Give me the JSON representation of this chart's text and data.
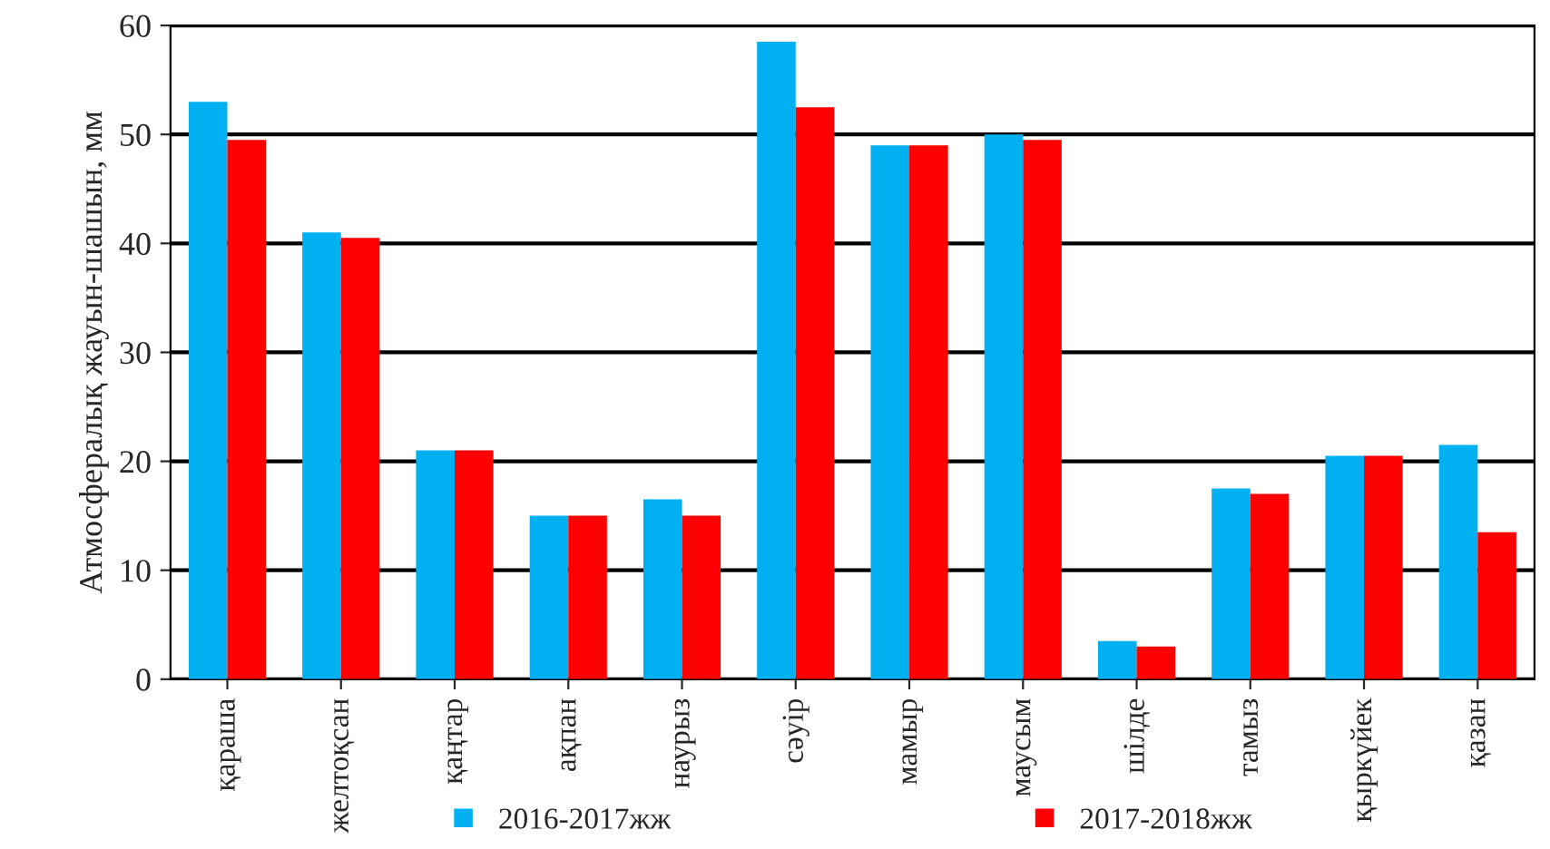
{
  "chart_data": {
    "type": "bar",
    "ylabel": "Атмосфералық жауын-шашын, мм",
    "categories": [
      "қараша",
      "желтоқсан",
      "қаңтар",
      "ақпан",
      "наурыз",
      "сәуір",
      "мамыр",
      "маусым",
      "шілде",
      "тамыз",
      "қыркүйек",
      "қазан"
    ],
    "series": [
      {
        "name": "2016-2017жж",
        "color": "#00b0f0",
        "values": [
          53,
          41,
          21,
          15,
          16.5,
          58.5,
          49,
          50,
          3.5,
          17.5,
          20.5,
          21.5
        ]
      },
      {
        "name": "2017-2018жж",
        "color": "#ff0000",
        "values": [
          49.5,
          40.5,
          21,
          15,
          15,
          52.5,
          49,
          49.5,
          3,
          17,
          20.5,
          13.5
        ]
      }
    ],
    "ylim": [
      0,
      60
    ],
    "yticks": [
      0,
      10,
      20,
      30,
      40,
      50,
      60
    ],
    "grid": "y",
    "legend": "bottom"
  }
}
